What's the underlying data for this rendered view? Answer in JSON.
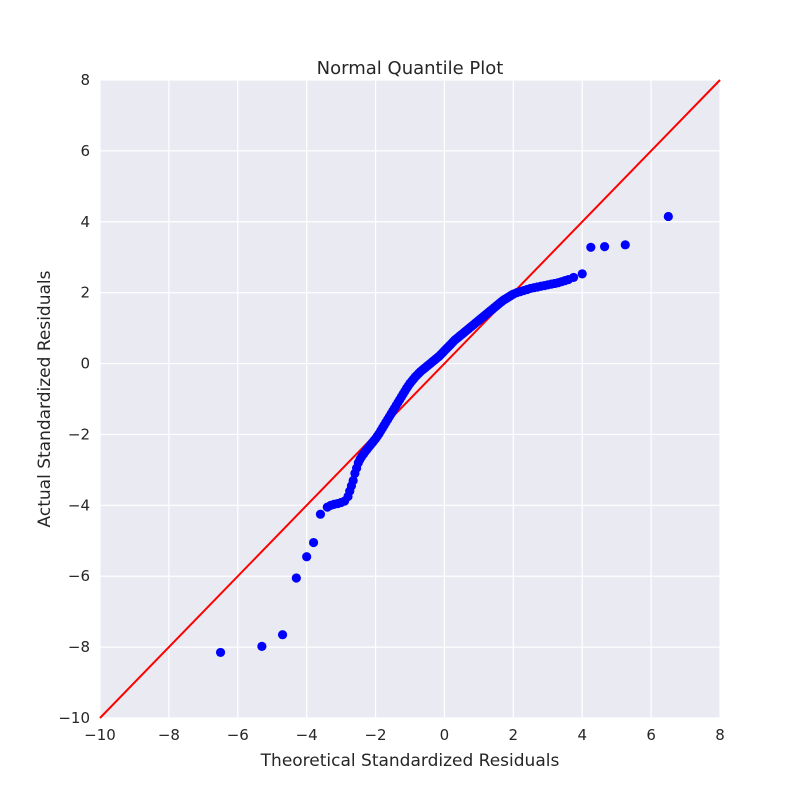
{
  "chart_data": {
    "type": "scatter",
    "title": "Normal Quantile Plot",
    "xlabel": "Theoretical Standardized Residuals",
    "ylabel": "Actual Standardized Residuals",
    "xlim": [
      -10,
      8
    ],
    "ylim": [
      -10,
      8
    ],
    "xticks": [
      -10,
      -8,
      -6,
      -4,
      -2,
      0,
      2,
      4,
      6,
      8
    ],
    "yticks": [
      -10,
      -8,
      -6,
      -4,
      -2,
      0,
      2,
      4,
      6,
      8
    ],
    "grid": true,
    "legend": "none",
    "colors": {
      "background": "#eaeaf2",
      "grid": "#ffffff",
      "points": "#0000ff",
      "line": "#ff0000",
      "text": "#262626"
    },
    "reference_line": {
      "x": [
        -10,
        8
      ],
      "y": [
        -10,
        8
      ]
    },
    "series": [
      {
        "x": [
          -6.5,
          -5.3,
          -4.7,
          -4.3,
          -4.0,
          -3.8,
          -3.6,
          -3.4,
          -3.3,
          -3.2,
          -3.1,
          -3.0,
          -2.9,
          -2.8,
          -2.75,
          -2.7,
          -2.65,
          -2.6,
          -2.55,
          -2.5,
          -2.45,
          -2.4,
          -2.35,
          -2.3,
          -2.25,
          -2.2,
          -2.15,
          -2.1,
          -2.05,
          -2.0,
          -1.95,
          -1.9,
          -1.85,
          -1.8,
          -1.75,
          -1.7,
          -1.65,
          -1.6,
          -1.55,
          -1.5,
          -1.45,
          -1.4,
          -1.35,
          -1.3,
          -1.25,
          -1.2,
          -1.15,
          -1.1,
          -1.05,
          -1.0,
          -0.95,
          -0.9,
          -0.85,
          -0.8,
          -0.75,
          -0.7,
          -0.65,
          -0.6,
          -0.55,
          -0.5,
          -0.45,
          -0.4,
          -0.35,
          -0.3,
          -0.25,
          -0.2,
          -0.15,
          -0.1,
          -0.05,
          0.0,
          0.05,
          0.1,
          0.15,
          0.2,
          0.25,
          0.3,
          0.35,
          0.4,
          0.45,
          0.5,
          0.55,
          0.6,
          0.65,
          0.7,
          0.75,
          0.8,
          0.85,
          0.9,
          0.95,
          1.0,
          1.05,
          1.1,
          1.15,
          1.2,
          1.25,
          1.3,
          1.35,
          1.4,
          1.45,
          1.5,
          1.55,
          1.6,
          1.65,
          1.7,
          1.75,
          1.8,
          1.85,
          1.9,
          1.95,
          2.0,
          2.1,
          2.2,
          2.3,
          2.4,
          2.5,
          2.6,
          2.7,
          2.8,
          2.9,
          3.0,
          3.1,
          3.2,
          3.3,
          3.4,
          3.5,
          3.6,
          3.75,
          4.0,
          4.25,
          4.65,
          5.25,
          6.5
        ],
        "y": [
          -8.15,
          -7.98,
          -7.65,
          -6.05,
          -5.45,
          -5.05,
          -4.25,
          -4.05,
          -4.0,
          -3.97,
          -3.95,
          -3.92,
          -3.88,
          -3.75,
          -3.6,
          -3.45,
          -3.3,
          -3.1,
          -2.95,
          -2.8,
          -2.7,
          -2.62,
          -2.55,
          -2.48,
          -2.42,
          -2.36,
          -2.3,
          -2.24,
          -2.18,
          -2.12,
          -2.05,
          -1.98,
          -1.9,
          -1.82,
          -1.74,
          -1.66,
          -1.58,
          -1.5,
          -1.42,
          -1.34,
          -1.26,
          -1.18,
          -1.1,
          -1.02,
          -0.94,
          -0.86,
          -0.78,
          -0.7,
          -0.63,
          -0.56,
          -0.5,
          -0.44,
          -0.38,
          -0.33,
          -0.28,
          -0.23,
          -0.19,
          -0.15,
          -0.11,
          -0.07,
          -0.03,
          0.01,
          0.05,
          0.09,
          0.13,
          0.17,
          0.21,
          0.26,
          0.31,
          0.36,
          0.41,
          0.46,
          0.51,
          0.56,
          0.61,
          0.66,
          0.7,
          0.74,
          0.78,
          0.82,
          0.86,
          0.9,
          0.94,
          0.98,
          1.02,
          1.06,
          1.1,
          1.14,
          1.18,
          1.22,
          1.26,
          1.3,
          1.34,
          1.38,
          1.42,
          1.46,
          1.5,
          1.54,
          1.58,
          1.62,
          1.66,
          1.7,
          1.74,
          1.78,
          1.81,
          1.84,
          1.87,
          1.9,
          1.93,
          1.96,
          2.0,
          2.03,
          2.06,
          2.09,
          2.12,
          2.14,
          2.16,
          2.18,
          2.2,
          2.22,
          2.24,
          2.26,
          2.28,
          2.31,
          2.34,
          2.37,
          2.43,
          2.53,
          3.28,
          3.3,
          3.35,
          4.15
        ]
      }
    ]
  }
}
